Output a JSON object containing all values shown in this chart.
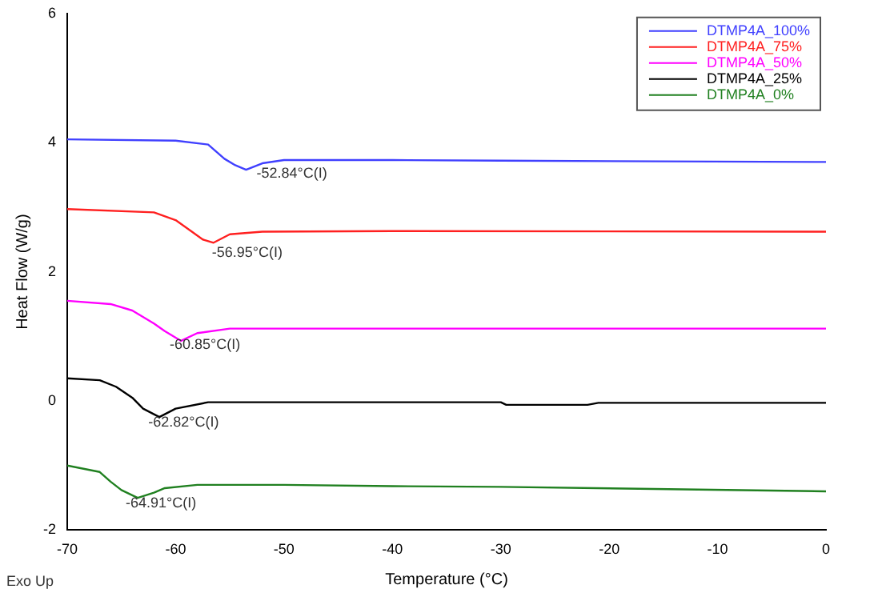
{
  "chart_data": {
    "type": "line",
    "xlabel": "Temperature (°C)",
    "ylabel": "Heat Flow (W/g)",
    "xlim": [
      -70,
      0
    ],
    "xticks": [
      -70,
      -60,
      -50,
      -40,
      -30,
      -20,
      -10,
      0
    ],
    "ylim": [
      -2,
      6
    ],
    "yticks": [
      -2,
      0,
      2,
      4,
      6
    ],
    "grid": false,
    "legend": "top right",
    "marker": "none",
    "line_style": "solid",
    "series": [
      {
        "name": "DTMP4A_100%",
        "color": "#4040ff",
        "x": [
          -70,
          -60,
          -57,
          -55.5,
          -54.5,
          -53.5,
          -52,
          -50,
          -40,
          -30,
          0
        ],
        "values": [
          4.05,
          4.03,
          3.97,
          3.75,
          3.65,
          3.58,
          3.68,
          3.73,
          3.73,
          3.72,
          3.7
        ]
      },
      {
        "name": "DTMP4A_75%",
        "color": "#ff2020",
        "x": [
          -70,
          -62,
          -60,
          -58.5,
          -57.5,
          -56.5,
          -55,
          -52,
          -40,
          0
        ],
        "values": [
          2.97,
          2.92,
          2.8,
          2.62,
          2.5,
          2.45,
          2.58,
          2.62,
          2.63,
          2.62
        ]
      },
      {
        "name": "DTMP4A_50%",
        "color": "#ff00ff",
        "x": [
          -70,
          -66,
          -64,
          -62,
          -61,
          -59.5,
          -58,
          -55,
          -40,
          0
        ],
        "values": [
          1.55,
          1.5,
          1.4,
          1.2,
          1.08,
          0.93,
          1.05,
          1.12,
          1.12,
          1.12
        ]
      },
      {
        "name": "DTMP4A_25%",
        "color": "#000000",
        "x": [
          -70,
          -67,
          -65.5,
          -64,
          -63,
          -61.5,
          -60,
          -57,
          -30,
          -29.5,
          -22,
          -21,
          0
        ],
        "values": [
          0.35,
          0.32,
          0.22,
          0.05,
          -0.12,
          -0.25,
          -0.12,
          -0.02,
          -0.02,
          -0.06,
          -0.06,
          -0.03,
          -0.03
        ]
      },
      {
        "name": "DTMP4A_0%",
        "color": "#208020",
        "x": [
          -70,
          -67,
          -66,
          -65,
          -63.5,
          -62,
          -61,
          -58,
          -50,
          -40,
          -30,
          0
        ],
        "values": [
          -1.0,
          -1.1,
          -1.25,
          -1.38,
          -1.5,
          -1.42,
          -1.35,
          -1.3,
          -1.3,
          -1.32,
          -1.33,
          -1.4
        ]
      }
    ],
    "annotations": [
      {
        "text": "-52.84°C(I)",
        "x": -52.84,
        "y": 3.73
      },
      {
        "text": "-56.95°C(I)",
        "x": -56.95,
        "y": 2.5
      },
      {
        "text": "-60.85°C(I)",
        "x": -60.85,
        "y": 1.08
      },
      {
        "text": "-62.82°C(I)",
        "x": -62.82,
        "y": -0.12
      },
      {
        "text": "-64.91°C(I)",
        "x": -64.91,
        "y": -1.38
      },
      "Exo Up"
    ]
  }
}
